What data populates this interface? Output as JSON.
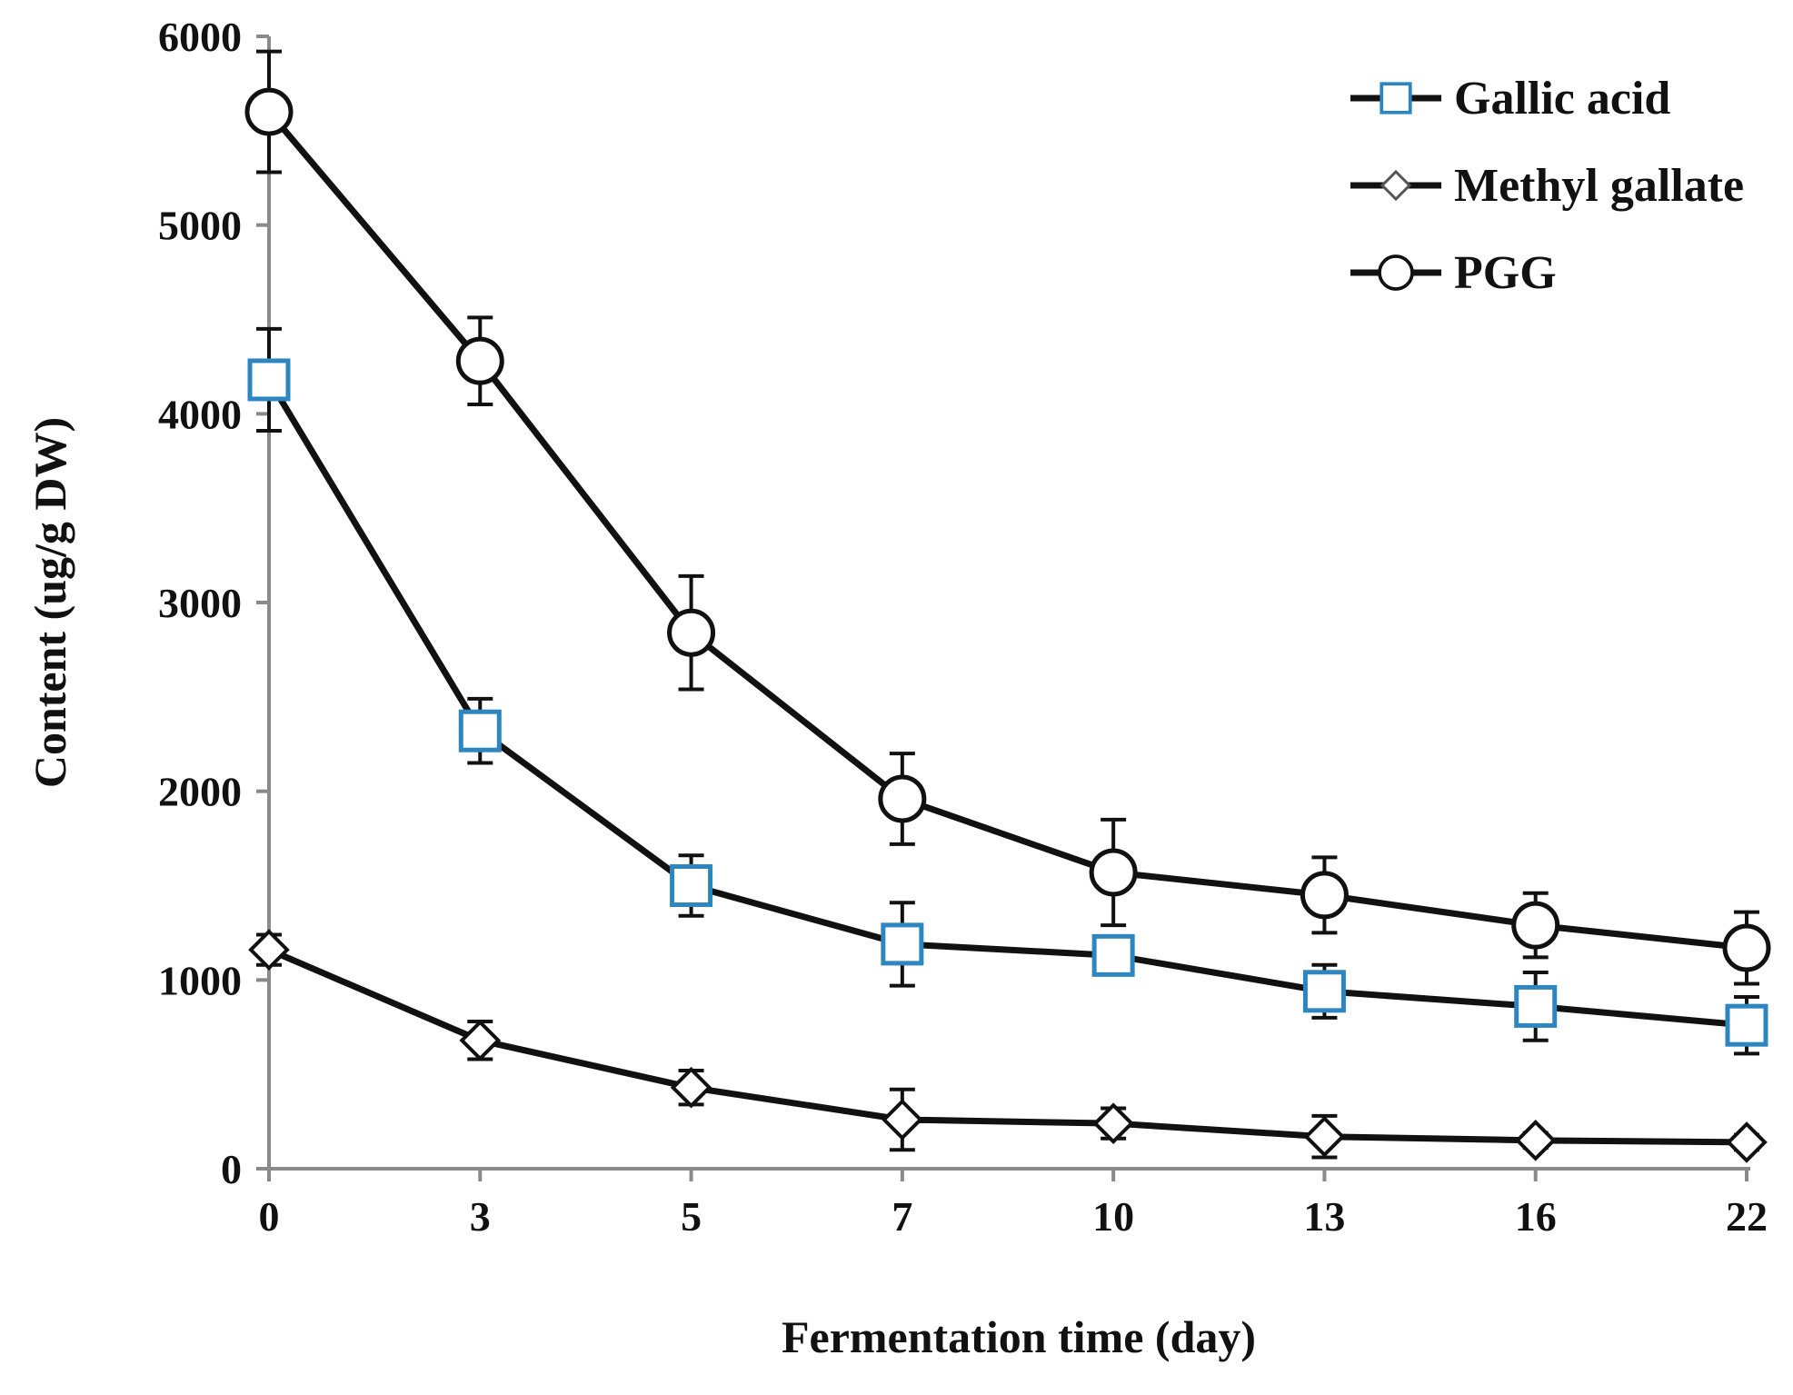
{
  "chart_data": {
    "type": "line",
    "title": "",
    "xlabel": "Fermentation time (day)",
    "ylabel": "Content (ug/g DW)",
    "categories": [
      "0",
      "3",
      "5",
      "7",
      "10",
      "13",
      "16",
      "22"
    ],
    "ylim": [
      0,
      6000
    ],
    "yticks": [
      "0",
      "1000",
      "2000",
      "3000",
      "4000",
      "5000",
      "6000"
    ],
    "grid": false,
    "legend_position": "top-right",
    "series": [
      {
        "name": "Gallic acid",
        "marker": "square",
        "marker_color": "#2e86c1",
        "values": [
          4180,
          2320,
          1500,
          1190,
          1130,
          940,
          860,
          760
        ],
        "errors": [
          270,
          170,
          160,
          220,
          100,
          140,
          180,
          150
        ]
      },
      {
        "name": "Methyl gallate",
        "marker": "diamond",
        "marker_color": "#555555",
        "values": [
          1160,
          680,
          430,
          260,
          240,
          170,
          150,
          140
        ],
        "errors": [
          80,
          100,
          90,
          160,
          80,
          110,
          40,
          40
        ]
      },
      {
        "name": "PGG",
        "marker": "circle",
        "marker_color": "#111111",
        "values": [
          5600,
          4280,
          2840,
          1960,
          1570,
          1450,
          1290,
          1170
        ],
        "errors": [
          320,
          230,
          300,
          240,
          280,
          200,
          170,
          190
        ]
      }
    ]
  }
}
